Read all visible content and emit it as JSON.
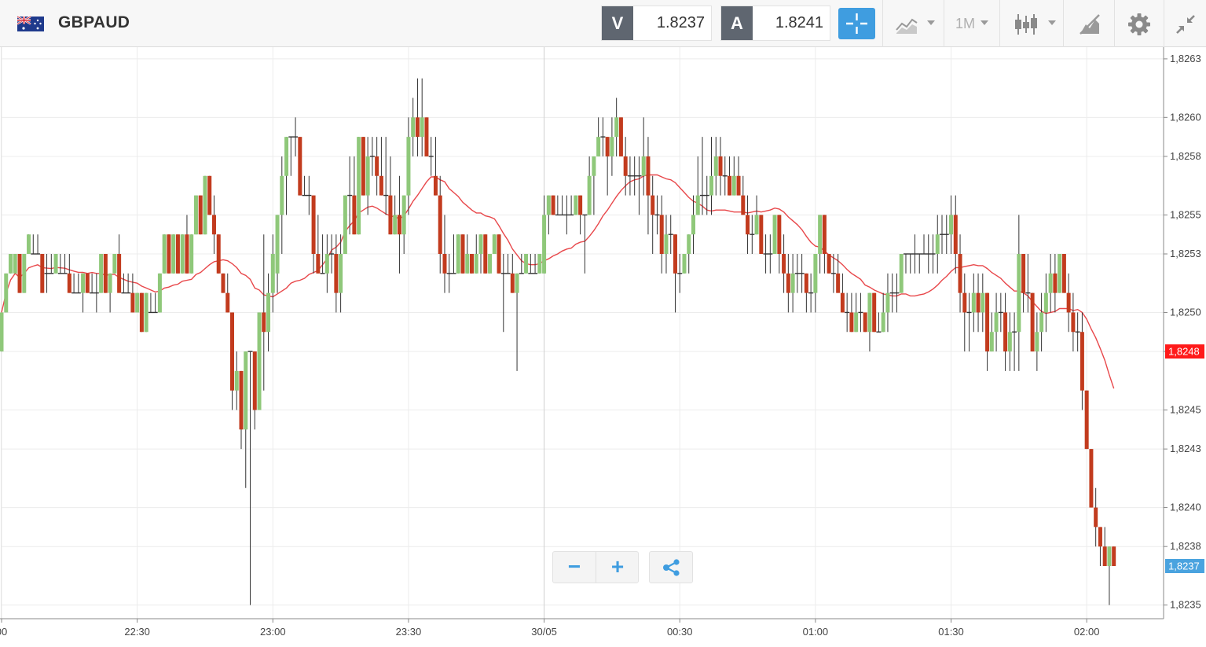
{
  "toolbar": {
    "symbol": "GBPAUD",
    "flag_icon": "gb-au-flag-icon",
    "bid": {
      "tag": "V",
      "value": "1.8237"
    },
    "ask": {
      "tag": "A",
      "value": "1.8241"
    },
    "timeframe": "1M",
    "icons": [
      "crosshair-icon",
      "chart-type-icon",
      "candlestick-icon",
      "drawing-tools-icon",
      "gear-icon",
      "collapse-icon"
    ],
    "colors": {
      "accent": "#3f9de0",
      "tag_bg": "#5f6670"
    }
  },
  "controls": {
    "zoom_out": "−",
    "zoom_in": "+",
    "share_icon": "share-icon"
  },
  "chart_data": {
    "type": "candlestick",
    "symbol": "GBPAUD",
    "timeframe": "1M",
    "colors": {
      "up": "#8fc87a",
      "down": "#c23b1e",
      "ma": "#e8474a",
      "last_price_label": "#ff1a1a",
      "bid_label": "#4aa3df"
    },
    "y_ticks": [
      "1,8263",
      "1,8260",
      "1,8258",
      "1,8255",
      "1,8253",
      "1,8250",
      "1,8248",
      "1,8245",
      "1,8243",
      "1,8240",
      "1,8238",
      "1,8235"
    ],
    "ylim": [
      1.82343,
      1.82636
    ],
    "x_ticks": [
      {
        "label": "00",
        "time": "22:00"
      },
      {
        "label": "22:30",
        "time": "22:30"
      },
      {
        "label": "23:00",
        "time": "23:00"
      },
      {
        "label": "23:30",
        "time": "23:30"
      },
      {
        "label": "30/05",
        "time": "00:00"
      },
      {
        "label": "00:30",
        "time": "00:30"
      },
      {
        "label": "01:00",
        "time": "01:00"
      },
      {
        "label": "01:30",
        "time": "01:30"
      },
      {
        "label": "02:00",
        "time": "02:00"
      }
    ],
    "xlim": [
      "22:00",
      "02:17"
    ],
    "price_labels": {
      "last": "1,8248",
      "bid": "1,8237"
    },
    "candles_compact": "22:00,1.82480,1.82500,1.82480,1.82500;22:01,1.82500,1.82520,1.82500,1.82520;22:02,1.82520,1.82530,1.82520,1.82530;22:03,1.82520,1.82530,1.82520,1.82530;22:04,1.82530,1.82530,1.82510,1.82510;22:05,1.82510,1.82530,1.82510,1.82530;22:06,1.82530,1.82540,1.82530,1.82540;22:07,1.82530,1.82540,1.82530,1.82530;22:08,1.82530,1.82540,1.82530,1.82530;22:09,1.82530,1.82530,1.82510,1.82510;22:10,1.82520,1.82530,1.82510,1.82520;22:11,1.82520,1.82530,1.82520,1.82520;22:12,1.82520,1.82530,1.82520,1.82530;22:13,1.82520,1.82530,1.82520,1.82520;22:14,1.82520,1.82530,1.82520,1.82520;22:15,1.82520,1.82530,1.82510,1.82510;22:16,1.82510,1.82520,1.82510,1.82510;22:17,1.82510,1.82520,1.82510,1.82510;22:18,1.82510,1.82520,1.82500,1.82520;22:19,1.82520,1.82520,1.82510,1.82510;22:20,1.82510,1.82520,1.82510,1.82510;22:21,1.82510,1.82520,1.82500,1.82510;22:22,1.82510,1.82530,1.82510,1.82530;22:23,1.82530,1.82530,1.82510,1.82510;22:24,1.82510,1.82520,1.82500,1.82520;22:25,1.82520,1.82530,1.82520,1.82530;22:26,1.82530,1.82540,1.82510,1.82510;22:27,1.82510,1.82520,1.82510,1.82510;22:28,1.82510,1.82520,1.82510,1.82510;22:29,1.82510,1.82520,1.82500,1.82500;22:30,1.82500,1.82510,1.82500,1.82510;22:31,1.82510,1.82510,1.82490,1.82490;22:32,1.82490,1.82510,1.82490,1.82510;22:33,1.82500,1.82510,1.82500,1.82500;22:34,1.82500,1.82510,1.82500,1.82500;22:35,1.82500,1.82520,1.82500,1.82520;22:36,1.82520,1.82540,1.82520,1.82540;22:37,1.82540,1.82540,1.82520,1.82520;22:38,1.82520,1.82540,1.82520,1.82540;22:39,1.82540,1.82540,1.82520,1.82520;22:40,1.82520,1.82540,1.82520,1.82540;22:41,1.82540,1.82550,1.82520,1.82520;22:42,1.82520,1.82540,1.82520,1.82540;22:43,1.82540,1.82560,1.82540,1.82560;22:44,1.82560,1.82560,1.82540,1.82540;22:45,1.82540,1.82570,1.82540,1.82570;22:46,1.82570,1.82570,1.82550,1.82550;22:47,1.82550,1.82560,1.82530,1.82540;22:48,1.82540,1.82540,1.82520,1.82520;22:49,1.82520,1.82520,1.82510,1.82510;22:50,1.82510,1.82520,1.82500,1.82500;22:51,1.82500,1.82500,1.82450,1.82460;22:52,1.82460,1.82480,1.82450,1.82470;22:53,1.82470,1.82470,1.82430,1.82440;22:54,1.82440,1.82480,1.82410,1.82480;22:55,1.82480,1.82480,1.82350,1.82480;22:56,1.82480,1.82480,1.82440,1.82450;22:57,1.82450,1.82500,1.82450,1.82500;22:58,1.82500,1.82540,1.82460,1.82490;22:59,1.82490,1.82520,1.82480,1.82510;23:00,1.82510,1.82540,1.82500,1.82530;23:01,1.82520,1.82550,1.82510,1.82550;23:02,1.82550,1.82580,1.82530,1.82570;23:03,1.82570,1.82590,1.82550,1.82590;23:04,1.82590,1.82590,1.82570,1.82590;23:05,1.82590,1.82600,1.82580,1.82590;23:06,1.82590,1.82590,1.82560,1.82560;23:07,1.82560,1.82570,1.82560,1.82560;23:08,1.82560,1.82570,1.82550,1.82560;23:09,1.82560,1.82560,1.82520,1.82530;23:10,1.82530,1.82550,1.82520,1.82520;23:11,1.82520,1.82540,1.82520,1.82520;23:12,1.82520,1.82540,1.82510,1.82530;23:13,1.82530,1.82540,1.82520,1.82530;23:14,1.82530,1.82540,1.82500,1.82510;23:15,1.82510,1.82540,1.82500,1.82530;23:16,1.82530,1.82560,1.82530,1.82560;23:17,1.82560,1.82580,1.82540,1.82560;23:18,1.82560,1.82580,1.82540,1.82540;23:19,1.82540,1.82590,1.82540,1.82590;23:20,1.82590,1.82590,1.82560,1.82560;23:21,1.82560,1.82590,1.82550,1.82580;23:22,1.82580,1.82590,1.82570,1.82580;23:23,1.82580,1.82590,1.82560,1.82570;23:24,1.82570,1.82590,1.82560,1.82560;23:25,1.82560,1.82590,1.82550,1.82560;23:26,1.82560,1.82580,1.82540,1.82540;23:27,1.82540,1.82560,1.82540,1.82550;23:28,1.82550,1.82570,1.82520,1.82540;23:29,1.82540,1.82560,1.82530,1.82560;23:30,1.82560,1.82600,1.82550,1.82590;23:31,1.82590,1.82610,1.82580,1.82600;23:32,1.82600,1.82620,1.82580,1.82590;23:33,1.82590,1.82620,1.82580,1.82600;23:34,1.82600,1.82600,1.82580,1.82580;23:35,1.82580,1.82590,1.82570,1.82580;23:36,1.82570,1.82590,1.82560,1.82560;23:37,1.82560,1.82570,1.82520,1.82530;23:38,1.82530,1.82550,1.82510,1.82520;23:39,1.82520,1.82530,1.82510,1.82520;23:40,1.82520,1.82540,1.82520,1.82520;23:41,1.82520,1.82540,1.82520,1.82540;23:42,1.82540,1.82540,1.82520,1.82520;23:43,1.82520,1.82540,1.82520,1.82530;23:44,1.82530,1.82530,1.82520,1.82520;23:45,1.82520,1.82540,1.82520,1.82530;23:46,1.82530,1.82540,1.82520,1.82540;23:47,1.82540,1.82540,1.82520,1.82520;23:48,1.82520,1.82530,1.82520,1.82530;23:49,1.82530,1.82540,1.82530,1.82540;23:50,1.82540,1.82540,1.82520,1.82520;23:51,1.82520,1.82530,1.82490,1.82520;23:52,1.82520,1.82530,1.82520,1.82520;23:53,1.82520,1.82530,1.82510,1.82510;23:54,1.82510,1.82520,1.82470,1.82520;23:55,1.82520,1.82530,1.82520,1.82520;23:56,1.82520,1.82530,1.82520,1.82530;23:57,1.82520,1.82530,1.82520,1.82520;23:58,1.82520,1.82530,1.82520,1.82520;23:59,1.82520,1.82530,1.82520,1.82530;00:00,1.82520,1.82560,1.82520,1.82550;00:01,1.82550,1.82560,1.82540,1.82560;00:02,1.82560,1.82560,1.82550,1.82550;00:03,1.82550,1.82560,1.82550,1.82550;00:04,1.82550,1.82560,1.82550,1.82550;00:05,1.82550,1.82560,1.82540,1.82550;00:06,1.82550,1.82560,1.82550,1.82550;00:07,1.82550,1.82560,1.82550,1.82560;00:08,1.82560,1.82560,1.82540,1.82550;00:09,1.82550,1.82550,1.82520,1.82550;00:10,1.82550,1.82580,1.82550,1.82570;00:11,1.82570,1.82580,1.82550,1.82580;00:12,1.82580,1.82600,1.82580,1.82590;00:13,1.82590,1.82600,1.82580,1.82590;00:14,1.82590,1.82590,1.82560,1.82580;00:15,1.82580,1.82600,1.82570,1.82590;00:16,1.82590,1.82610,1.82580,1.82600;00:17,1.82600,1.82600,1.82580,1.82580;00:18,1.82580,1.82590,1.82560,1.82570;00:19,1.82570,1.82580,1.82560,1.82570;00:20,1.82570,1.82580,1.82560,1.82570;00:21,1.82570,1.82580,1.82550,1.82570;00:22,1.82570,1.82600,1.82560,1.82580;00:23,1.82580,1.82590,1.82540,1.82560;00:24,1.82560,1.82570,1.82530,1.82550;00:25,1.82550,1.82560,1.82540,1.82550;00:26,1.82550,1.82560,1.82520,1.82530;00:27,1.82530,1.82550,1.82520,1.82540;00:28,1.82540,1.82550,1.82530,1.82540;00:29,1.82540,1.82540,1.82500,1.82520;00:30,1.82520,1.82530,1.82510,1.82520;00:31,1.82520,1.82530,1.82520,1.82530;00:32,1.82530,1.82540,1.82520,1.82540;00:33,1.82540,1.82560,1.82530,1.82550;00:34,1.82550,1.82580,1.82550,1.82560;00:35,1.82560,1.82590,1.82550,1.82560;00:36,1.82560,1.82570,1.82550,1.82560;00:37,1.82560,1.82590,1.82550,1.82570;00:38,1.82570,1.82590,1.82560,1.82580;00:39,1.82580,1.82590,1.82560,1.82570;00:40,1.82570,1.82580,1.82560,1.82570;00:41,1.82570,1.82580,1.82560,1.82560;00:42,1.82560,1.82580,1.82560,1.82570;00:43,1.82570,1.82580,1.82560,1.82560;00:44,1.82560,1.82570,1.82550,1.82550;00:45,1.82550,1.82560,1.82530,1.82540;00:46,1.82540,1.82550,1.82530,1.82540;00:47,1.82540,1.82560,1.82540,1.82550;00:48,1.82550,1.82550,1.82530,1.82530;00:49,1.82530,1.82540,1.82520,1.82530;00:50,1.82530,1.82540,1.82520,1.82530;00:51,1.82530,1.82550,1.82530,1.82550;00:52,1.82550,1.82550,1.82520,1.82530;00:53,1.82530,1.82540,1.82510,1.82520;00:54,1.82520,1.82530,1.82500,1.82510;00:55,1.82510,1.82530,1.82500,1.82520;00:56,1.82520,1.82530,1.82510,1.82520;00:57,1.82520,1.82530,1.82510,1.82520;00:58,1.82520,1.82520,1.82500,1.82510;00:59,1.82510,1.82520,1.82500,1.82510;01:00,1.82510,1.82530,1.82500,1.82530;01:01,1.82530,1.82550,1.82520,1.82550;01:02,1.82550,1.82550,1.82520,1.82530;01:03,1.82530,1.82530,1.82520,1.82520;01:04,1.82520,1.82530,1.82510,1.82520;01:05,1.82520,1.82530,1.82510,1.82510;01:06,1.82510,1.82520,1.82500,1.82500;01:07,1.82500,1.82510,1.82490,1.82500;01:08,1.82500,1.82510,1.82490,1.82490;01:09,1.82490,1.82510,1.82490,1.82500;01:10,1.82500,1.82510,1.82490,1.82500;01:11,1.82500,1.82500,1.82490,1.82490;01:12,1.82490,1.82510,1.82480,1.82510;01:13,1.82510,1.82510,1.82490,1.82490;01:14,1.82490,1.82500,1.82490,1.82490;01:15,1.82490,1.82510,1.82490,1.82500;01:16,1.82500,1.82520,1.82490,1.82510;01:17,1.82510,1.82520,1.82500,1.82510;01:18,1.82510,1.82520,1.82500,1.82510;01:19,1.82510,1.82530,1.82510,1.82530;01:20,1.82530,1.82530,1.82520,1.82530;01:21,1.82530,1.82530,1.82520,1.82530;01:22,1.82530,1.82540,1.82520,1.82530;01:23,1.82530,1.82530,1.82520,1.82530;01:24,1.82530,1.82540,1.82530,1.82530;01:25,1.82530,1.82540,1.82520,1.82530;01:26,1.82530,1.82540,1.82520,1.82530;01:27,1.82530,1.82550,1.82520,1.82540;01:28,1.82540,1.82550,1.82530,1.82540;01:29,1.82540,1.82550,1.82530,1.82540;01:30,1.82540,1.82560,1.82530,1.82550;01:31,1.82550,1.82560,1.82520,1.82530;01:32,1.82530,1.82540,1.82500,1.82510;01:33,1.82510,1.82520,1.82480,1.82500;01:34,1.82500,1.82510,1.82480,1.82500;01:35,1.82500,1.82520,1.82490,1.82510;01:36,1.82510,1.82520,1.82490,1.82500;01:37,1.82500,1.82520,1.82490,1.82510;01:38,1.82510,1.82510,1.82470,1.82480;01:39,1.82480,1.82500,1.82480,1.82490;01:40,1.82490,1.82510,1.82480,1.82500;01:41,1.82500,1.82510,1.82490,1.82500;01:42,1.82500,1.82510,1.82470,1.82480;01:43,1.82480,1.82500,1.82470,1.82490;01:44,1.82490,1.82500,1.82470,1.82490;01:45,1.82490,1.82550,1.82470,1.82530;01:46,1.82530,1.82530,1.82500,1.82510;01:47,1.82510,1.82530,1.82500,1.82510;01:48,1.82510,1.82510,1.82480,1.82480;01:49,1.82480,1.82500,1.82470,1.82490;01:50,1.82490,1.82510,1.82480,1.82500;01:51,1.82500,1.82520,1.82490,1.82510;01:52,1.82510,1.82530,1.82500,1.82520;01:53,1.82520,1.82530,1.82500,1.82510;01:54,1.82510,1.82530,1.82510,1.82530;01:55,1.82530,1.82530,1.82510,1.82510;01:56,1.82510,1.82520,1.82490,1.82500;01:57,1.82500,1.82510,1.82480,1.82490;01:58,1.82490,1.82500,1.82480,1.82490;01:59,1.82490,1.82500,1.82450,1.82460;02:00,1.82460,1.82460,1.82430,1.82430;02:01,1.82430,1.82430,1.82400,1.82400;02:02,1.82400,1.82410,1.82380,1.82390;02:03,1.82390,1.82390,1.82370,1.82380;02:04,1.82380,1.82390,1.82370,1.82370;02:05,1.82370,1.82380,1.82350,1.82380;02:06,1.82380,1.82380,1.82370,1.82370"
  }
}
